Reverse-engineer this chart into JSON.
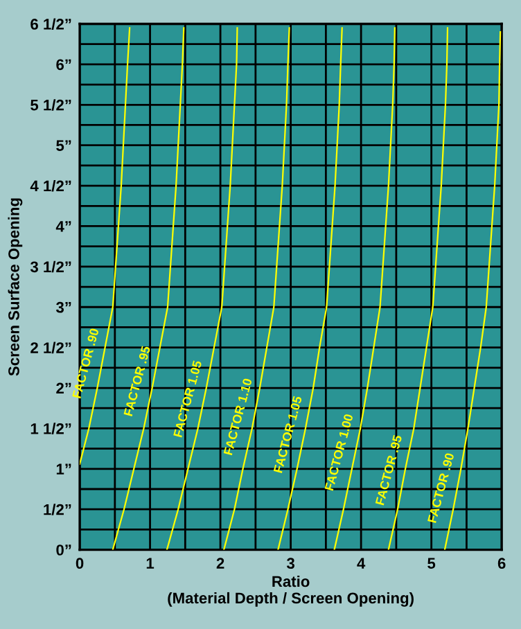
{
  "chart_data": {
    "type": "line",
    "xlabel": "Ratio\n(Material Depth / Screen Opening)",
    "ylabel": "Screen Surface Opening",
    "series": [
      {
        "name": "FACTOR .90",
        "color": "#ffff00",
        "x": [
          0,
          0.13,
          0.25,
          0.36,
          0.47,
          0.51,
          0.55,
          0.59,
          0.62,
          0.65,
          0.68,
          0.71
        ],
        "values": [
          1.06,
          1.5,
          2,
          2.5,
          3,
          3.5,
          4,
          4.5,
          5,
          5.5,
          6,
          6.45
        ]
      },
      {
        "name": "FACTOR .95",
        "color": "#ffff00",
        "x": [
          0.47,
          0.63,
          0.77,
          0.91,
          1.03,
          1.14,
          1.25,
          1.29,
          1.33,
          1.37,
          1.4,
          1.43,
          1.46,
          1.48
        ],
        "values": [
          0,
          0.5,
          1,
          1.5,
          2,
          2.5,
          3,
          3.5,
          4,
          4.5,
          5,
          5.5,
          6,
          6.45
        ]
      },
      {
        "name": "FACTOR 1.05",
        "color": "#ffff00",
        "x": [
          1.24,
          1.4,
          1.54,
          1.68,
          1.8,
          1.91,
          2.02,
          2.06,
          2.1,
          2.14,
          2.17,
          2.2,
          2.23,
          2.24
        ],
        "values": [
          0,
          0.5,
          1,
          1.5,
          2,
          2.5,
          3,
          3.5,
          4,
          4.5,
          5,
          5.5,
          6,
          6.45
        ]
      },
      {
        "name": "FACTOR 1.10",
        "color": "#ffff00",
        "x": [
          2.05,
          2.2,
          2.32,
          2.45,
          2.56,
          2.66,
          2.76,
          2.8,
          2.84,
          2.88,
          2.91,
          2.94,
          2.96,
          2.98
        ],
        "values": [
          0,
          0.5,
          1,
          1.5,
          2,
          2.5,
          3,
          3.5,
          4,
          4.5,
          5,
          5.5,
          6,
          6.45
        ]
      },
      {
        "name": "FACTOR 1.05",
        "color": "#ffff00",
        "x": [
          2.82,
          2.96,
          3.09,
          3.21,
          3.32,
          3.41,
          3.51,
          3.55,
          3.59,
          3.63,
          3.66,
          3.69,
          3.71,
          3.73
        ],
        "values": [
          0,
          0.5,
          1,
          1.5,
          2,
          2.5,
          3,
          3.5,
          4,
          4.5,
          5,
          5.5,
          6,
          6.45
        ]
      },
      {
        "name": "FACTOR 1.00",
        "color": "#ffff00",
        "x": [
          3.62,
          3.75,
          3.87,
          3.99,
          4.09,
          4.18,
          4.27,
          4.31,
          4.35,
          4.39,
          4.42,
          4.45,
          4.47,
          4.48
        ],
        "values": [
          0,
          0.5,
          1,
          1.5,
          2,
          2.5,
          3,
          3.5,
          4,
          4.5,
          5,
          5.5,
          6,
          6.45
        ]
      },
      {
        "name": "FACTOR .95",
        "color": "#ffff00",
        "x": [
          4.39,
          4.52,
          4.63,
          4.75,
          4.84,
          4.93,
          5.02,
          5.06,
          5.1,
          5.14,
          5.17,
          5.2,
          5.22,
          5.23
        ],
        "values": [
          0,
          0.5,
          1,
          1.5,
          2,
          2.5,
          3,
          3.5,
          4,
          4.5,
          5,
          5.5,
          6,
          6.45
        ]
      },
      {
        "name": "FACTOR .90",
        "color": "#ffff00",
        "x": [
          5.19,
          5.31,
          5.42,
          5.52,
          5.61,
          5.7,
          5.78,
          5.82,
          5.86,
          5.9,
          5.93,
          5.96,
          5.97,
          5.98
        ],
        "values": [
          0,
          0.5,
          1,
          1.5,
          2,
          2.5,
          3,
          3.5,
          4,
          4.5,
          5,
          5.5,
          6,
          6.4
        ]
      }
    ],
    "xlim": [
      0,
      6
    ],
    "ylim": [
      0,
      6.5
    ],
    "xticks": [
      0,
      {
        "value": 0.5,
        "label": null
      },
      1,
      {
        "value": 1.5,
        "label": null
      },
      2,
      {
        "value": 2.5,
        "label": null
      },
      3,
      {
        "value": 3.5,
        "label": null
      },
      4,
      {
        "value": 4.5,
        "label": null
      },
      5,
      {
        "value": 5.5,
        "label": null
      },
      6
    ],
    "yticks": [
      {
        "value": 0,
        "label": "0”"
      },
      {
        "value": 0.25,
        "label": null
      },
      {
        "value": 0.5,
        "label": "1/2”"
      },
      {
        "value": 0.75,
        "label": null
      },
      {
        "value": 1,
        "label": "1”"
      },
      {
        "value": 1.25,
        "label": null
      },
      {
        "value": 1.5,
        "label": "1 1/2”"
      },
      {
        "value": 1.75,
        "label": null
      },
      {
        "value": 2,
        "label": "2”"
      },
      {
        "value": 2.25,
        "label": null
      },
      {
        "value": 2.5,
        "label": "2 1/2”"
      },
      {
        "value": 2.75,
        "label": null
      },
      {
        "value": 3,
        "label": "3”"
      },
      {
        "value": 3.25,
        "label": null
      },
      {
        "value": 3.5,
        "label": "3 1/2”"
      },
      {
        "value": 3.75,
        "label": null
      },
      {
        "value": 4,
        "label": "4”"
      },
      {
        "value": 4.25,
        "label": null
      },
      {
        "value": 4.5,
        "label": "4 1/2”"
      },
      {
        "value": 4.75,
        "label": null
      },
      {
        "value": 5,
        "label": "5”"
      },
      {
        "value": 5.25,
        "label": null
      },
      {
        "value": 5.5,
        "label": "5 1/2”"
      },
      {
        "value": 5.75,
        "label": null
      },
      {
        "value": 6,
        "label": "6”"
      },
      {
        "value": 6.25,
        "label": null
      },
      {
        "value": 6.5,
        "label": "6 1/2”"
      }
    ],
    "grid": true,
    "marker": "none",
    "line_style": "solid"
  }
}
